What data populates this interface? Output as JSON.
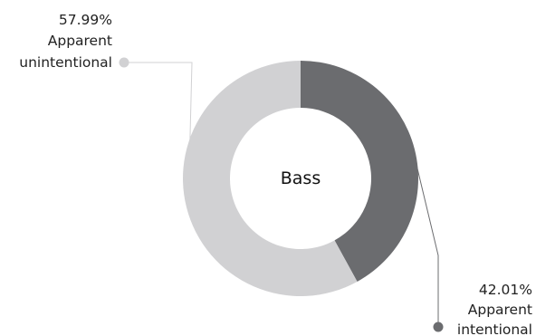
{
  "chart_data": {
    "type": "pie",
    "center_label": "Bass",
    "slices": [
      {
        "label_lines": [
          "Apparent",
          "intentional"
        ],
        "percent_text": "42.01%",
        "value": 42.01,
        "color": "#6b6c6f",
        "label_side": "bottom-right"
      },
      {
        "label_lines": [
          "Apparent",
          "unintentional"
        ],
        "percent_text": "57.99%",
        "value": 57.99,
        "color": "#d1d1d3",
        "label_side": "top-left"
      }
    ]
  }
}
